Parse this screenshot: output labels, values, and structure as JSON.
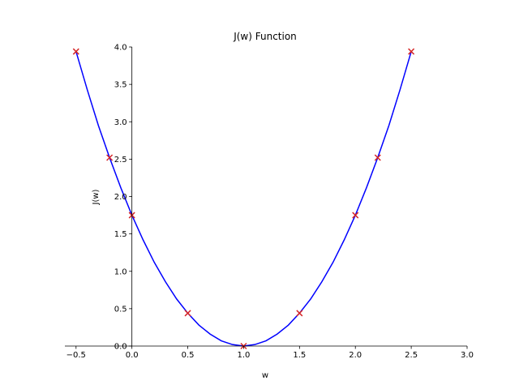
{
  "chart_data": {
    "type": "line",
    "title": "J(w) Function",
    "xlabel": "w",
    "ylabel": "J(w)",
    "xlim": [
      -0.6,
      3.0
    ],
    "ylim": [
      0.0,
      4.0
    ],
    "x_ticks": [
      "-0.5",
      "0.0",
      "0.5",
      "1.0",
      "1.5",
      "2.0",
      "2.5",
      "3.0"
    ],
    "y_ticks": [
      "0.0",
      "0.5",
      "1.0",
      "1.5",
      "2.0",
      "2.5",
      "3.0",
      "3.5",
      "4.0"
    ],
    "grid": false,
    "legend": "none",
    "series": [
      {
        "kind": "line",
        "color": "#0000ff",
        "x": [
          -0.5,
          -0.4,
          -0.3,
          -0.2,
          -0.1,
          0.0,
          0.1,
          0.2,
          0.3,
          0.4,
          0.5,
          0.6,
          0.7,
          0.8,
          0.9,
          1.0,
          1.1,
          1.2,
          1.3,
          1.4,
          1.5,
          1.6,
          1.7,
          1.8,
          1.9,
          2.0,
          2.1,
          2.2,
          2.3,
          2.4,
          2.5
        ],
        "y": [
          3.94,
          3.43,
          2.95,
          2.52,
          2.12,
          1.75,
          1.42,
          1.12,
          0.86,
          0.63,
          0.44,
          0.28,
          0.16,
          0.07,
          0.02,
          0.0,
          0.02,
          0.07,
          0.16,
          0.28,
          0.44,
          0.63,
          0.86,
          1.12,
          1.42,
          1.75,
          2.12,
          2.52,
          2.95,
          3.43,
          3.94
        ]
      },
      {
        "kind": "scatter",
        "marker": "x",
        "color": "#d62728",
        "x": [
          -0.5,
          -0.2,
          0.0,
          0.5,
          1.0,
          1.5,
          2.0,
          2.2,
          2.5
        ],
        "y": [
          3.94,
          2.52,
          1.75,
          0.44,
          0.0,
          0.44,
          1.75,
          2.52,
          3.94
        ]
      }
    ]
  }
}
